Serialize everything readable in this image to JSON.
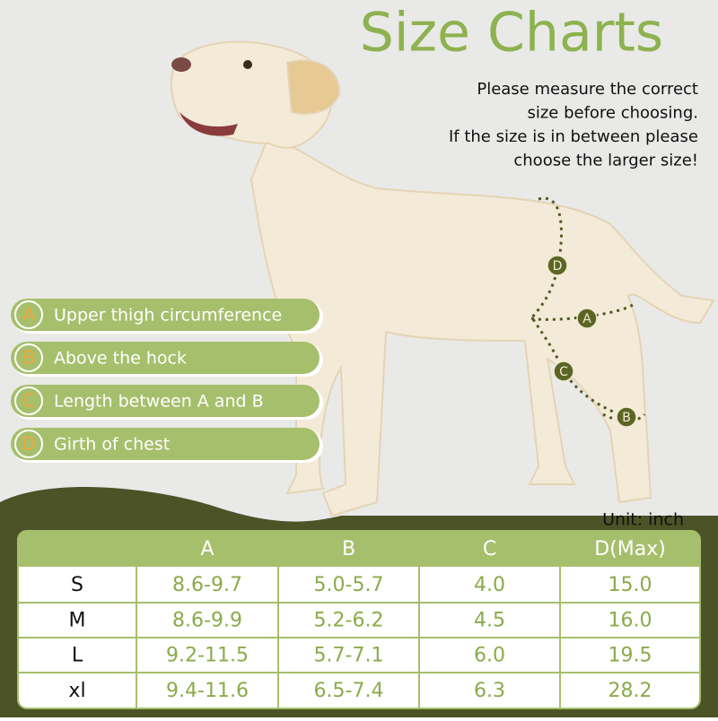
{
  "title": "Size Charts",
  "instructions": [
    "Please measure the correct",
    "size before choosing.",
    "If the size is in between please",
    "choose the larger size!"
  ],
  "legend": [
    {
      "letter": "A",
      "text": "Upper thigh circumference"
    },
    {
      "letter": "B",
      "text": "Above the hock"
    },
    {
      "letter": "C",
      "text": "Length between A and B"
    },
    {
      "letter": "D",
      "text": "Girth of chest"
    }
  ],
  "markers": [
    "D",
    "A",
    "C",
    "B"
  ],
  "unit": "Unit: inch",
  "table": {
    "header": [
      "A",
      "B",
      "C",
      "D(Max)"
    ],
    "rows": [
      [
        "S",
        "8.6-9.7",
        "5.0-5.7",
        "4.0",
        "15.0"
      ],
      [
        "M",
        "8.6-9.9",
        "5.2-6.2",
        "4.5",
        "16.0"
      ],
      [
        "L",
        "9.2-11.5",
        "5.7-7.1",
        "6.0",
        "19.5"
      ],
      [
        "xl",
        "9.4-11.6",
        "6.5-7.4",
        "6.3",
        "28.2"
      ]
    ]
  }
}
